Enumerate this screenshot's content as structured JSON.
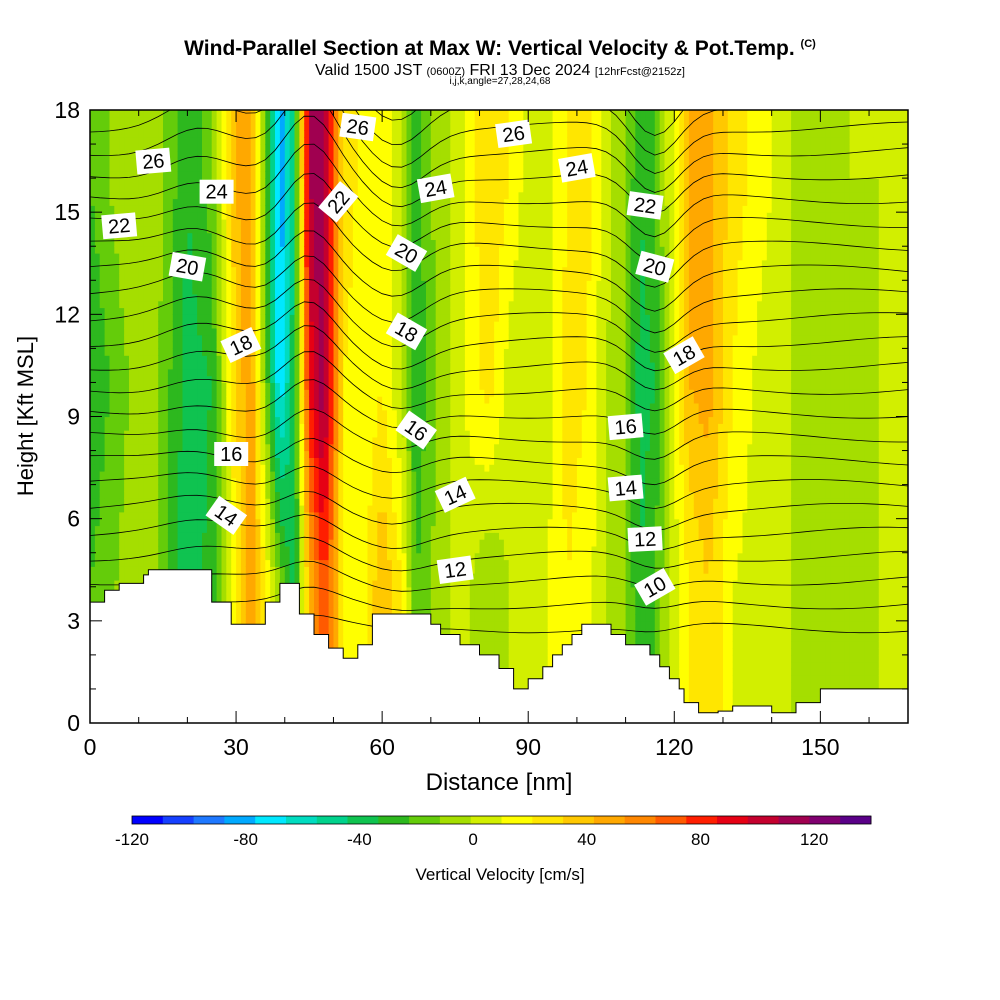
{
  "header": {
    "title": "Wind-Parallel Section at Max W: Vertical Velocity & Pot.Temp.",
    "copyright": "(C)",
    "valid_prefix": "Valid 1500 JST",
    "valid_utc": "(0600Z)",
    "valid_date": "FRI 13 Dec 2024",
    "forecast": "[12hrFcst@2152z]",
    "indices": "i,j,k,angle=27,28,24,68"
  },
  "chart_data": {
    "type": "heatmap",
    "title": "Wind-Parallel Section at Max W: Vertical Velocity & Pot.Temp.",
    "xlabel": "Distance [nm]",
    "ylabel": "Height [Kft MSL]",
    "xlim": [
      0,
      168
    ],
    "ylim": [
      0,
      18
    ],
    "x_ticks": [
      0,
      30,
      60,
      90,
      120,
      150
    ],
    "y_ticks": [
      0,
      3,
      6,
      9,
      12,
      15,
      18
    ],
    "colorbar": {
      "label": "Vertical Velocity [cm/s]",
      "min": -120,
      "max": 140,
      "step": 10,
      "tick_values": [
        -120,
        -80,
        -40,
        0,
        40,
        80,
        120
      ],
      "colors": [
        "#0000ff",
        "#1540ff",
        "#1e78ff",
        "#00a9ff",
        "#00e8ff",
        "#00dcc0",
        "#00d28c",
        "#0fc350",
        "#2db81e",
        "#64cc0a",
        "#a5de00",
        "#d2ef00",
        "#ffff00",
        "#ffe600",
        "#ffc800",
        "#ffa800",
        "#ff8700",
        "#ff5a00",
        "#ff1e00",
        "#e60014",
        "#c4002e",
        "#a00050",
        "#800070",
        "#5a0088"
      ]
    },
    "w_field": {
      "x": [
        0,
        8,
        14,
        20,
        25,
        30,
        33,
        36,
        39,
        42,
        45,
        48,
        50,
        52,
        56,
        60,
        64,
        67,
        70,
        74,
        78,
        82,
        86,
        90,
        94,
        98,
        102,
        106,
        110,
        113,
        116,
        119,
        123,
        127,
        132,
        138,
        144,
        150,
        156,
        162,
        168
      ],
      "w_low": [
        -30,
        -15,
        -20,
        -50,
        -35,
        10,
        40,
        10,
        -20,
        -50,
        30,
        60,
        40,
        10,
        5,
        30,
        10,
        -30,
        -20,
        -10,
        -10,
        -20,
        -10,
        -5,
        0,
        10,
        5,
        -10,
        -20,
        -40,
        -30,
        -10,
        10,
        20,
        0,
        -5,
        -10,
        -15,
        -15,
        -10,
        -10
      ],
      "w_mid": [
        -40,
        -20,
        -20,
        -45,
        -40,
        20,
        40,
        -20,
        -80,
        -40,
        70,
        100,
        55,
        10,
        0,
        10,
        -10,
        -40,
        -25,
        -10,
        5,
        15,
        -5,
        -10,
        -5,
        15,
        10,
        -10,
        -20,
        -45,
        -40,
        -10,
        30,
        35,
        10,
        -5,
        -10,
        -15,
        -15,
        -10,
        -10
      ],
      "w_high": [
        -30,
        -10,
        -15,
        -40,
        -25,
        30,
        40,
        -30,
        -90,
        -50,
        90,
        100,
        50,
        20,
        5,
        10,
        -10,
        -35,
        -20,
        -10,
        5,
        20,
        10,
        -5,
        -5,
        10,
        15,
        -5,
        -20,
        -40,
        -30,
        -5,
        30,
        35,
        15,
        5,
        -10,
        -15,
        -10,
        -10,
        -10
      ]
    },
    "theta_contours": {
      "levels": [
        10,
        12,
        14,
        16,
        18,
        20,
        22,
        24,
        26
      ],
      "labels": [
        {
          "x": 116,
          "y": 4.0,
          "text": "10",
          "angle": -30
        },
        {
          "x": 75,
          "y": 4.5,
          "text": "12",
          "angle": -8
        },
        {
          "x": 114,
          "y": 5.4,
          "text": "12",
          "angle": -3
        },
        {
          "x": 28,
          "y": 6.1,
          "text": "14",
          "angle": 35
        },
        {
          "x": 75,
          "y": 6.7,
          "text": "14",
          "angle": -25
        },
        {
          "x": 110,
          "y": 6.9,
          "text": "14",
          "angle": -5
        },
        {
          "x": 29,
          "y": 7.9,
          "text": "16",
          "angle": 0
        },
        {
          "x": 67,
          "y": 8.6,
          "text": "16",
          "angle": 35
        },
        {
          "x": 110,
          "y": 8.7,
          "text": "16",
          "angle": -5
        },
        {
          "x": 31,
          "y": 11.1,
          "text": "18",
          "angle": -25
        },
        {
          "x": 65,
          "y": 11.5,
          "text": "18",
          "angle": 30
        },
        {
          "x": 122,
          "y": 10.8,
          "text": "18",
          "angle": -30
        },
        {
          "x": 20,
          "y": 13.4,
          "text": "20",
          "angle": 10
        },
        {
          "x": 65,
          "y": 13.8,
          "text": "20",
          "angle": 30
        },
        {
          "x": 116,
          "y": 13.4,
          "text": "20",
          "angle": 15
        },
        {
          "x": 6,
          "y": 14.6,
          "text": "22",
          "angle": -5
        },
        {
          "x": 51,
          "y": 15.3,
          "text": "22",
          "angle": -50
        },
        {
          "x": 114,
          "y": 15.2,
          "text": "22",
          "angle": 8
        },
        {
          "x": 26,
          "y": 15.6,
          "text": "24",
          "angle": 0
        },
        {
          "x": 71,
          "y": 15.7,
          "text": "24",
          "angle": -10
        },
        {
          "x": 100,
          "y": 16.3,
          "text": "24",
          "angle": -10
        },
        {
          "x": 13,
          "y": 16.5,
          "text": "26",
          "angle": -5
        },
        {
          "x": 55,
          "y": 17.5,
          "text": "26",
          "angle": 8
        },
        {
          "x": 87,
          "y": 17.3,
          "text": "26",
          "angle": -8
        }
      ]
    },
    "terrain": {
      "x": [
        0,
        3,
        3,
        6,
        6,
        11,
        11,
        12,
        12,
        25,
        25,
        29,
        29,
        36,
        36,
        39,
        39,
        43,
        43,
        46,
        46,
        49,
        49,
        52,
        52,
        55,
        55,
        58,
        58,
        70,
        70,
        72,
        72,
        76,
        76,
        80,
        80,
        84,
        84,
        87,
        87,
        90,
        90,
        93,
        93,
        95,
        95,
        97,
        97,
        99,
        99,
        101,
        101,
        107,
        107,
        110,
        110,
        115,
        115,
        117,
        117,
        119,
        119,
        121,
        121,
        122,
        122,
        125,
        125,
        129,
        129,
        132,
        132,
        140,
        140,
        145,
        145,
        150,
        150,
        168
      ],
      "y": [
        3.55,
        3.55,
        3.9,
        3.9,
        4.1,
        4.1,
        4.35,
        4.35,
        4.5,
        4.5,
        3.55,
        3.55,
        2.9,
        2.9,
        3.55,
        3.55,
        4.1,
        4.1,
        3.2,
        3.2,
        2.6,
        2.6,
        2.2,
        2.2,
        1.9,
        1.9,
        2.3,
        2.3,
        3.2,
        3.2,
        2.9,
        2.9,
        2.6,
        2.6,
        2.3,
        2.3,
        2.0,
        2.0,
        1.6,
        1.6,
        1.0,
        1.0,
        1.3,
        1.3,
        1.65,
        1.65,
        2.0,
        2.0,
        2.3,
        2.3,
        2.6,
        2.6,
        2.9,
        2.9,
        2.6,
        2.6,
        2.3,
        2.3,
        2.0,
        2.0,
        1.65,
        1.65,
        1.3,
        1.3,
        1.0,
        1.0,
        0.6,
        0.6,
        0.3,
        0.3,
        0.35,
        0.35,
        0.5,
        0.5,
        0.3,
        0.3,
        0.6,
        0.6,
        1.0,
        1.0
      ]
    }
  }
}
